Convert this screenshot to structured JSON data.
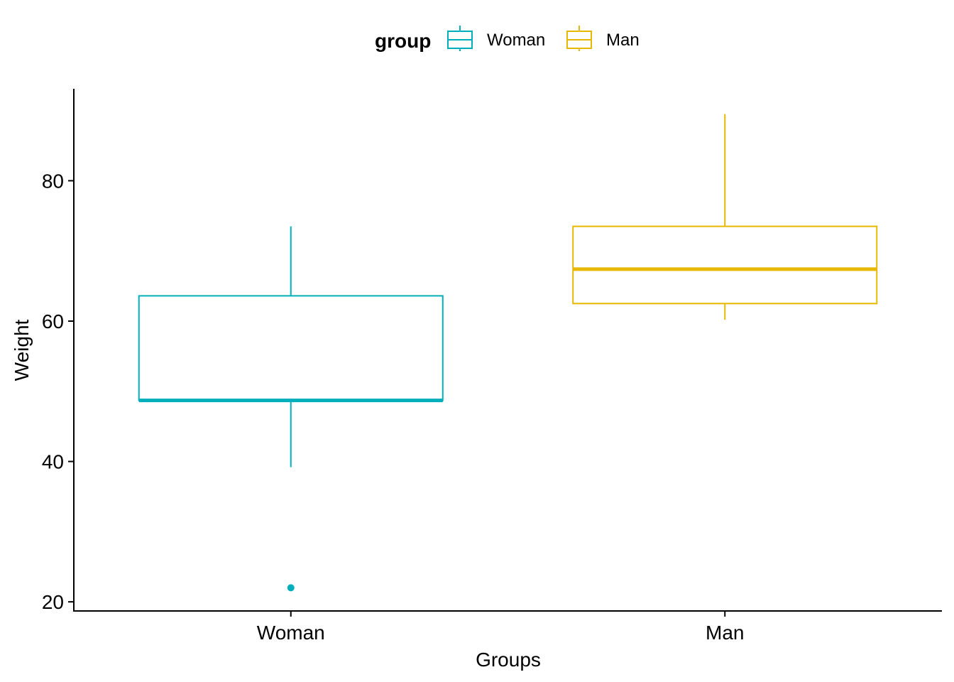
{
  "chart_data": {
    "type": "boxplot",
    "xlabel": "Groups",
    "ylabel": "Weight",
    "ylim": [
      18.7,
      93.1
    ],
    "yticks": [
      20,
      40,
      60,
      80
    ],
    "categories": [
      "Woman",
      "Man"
    ],
    "legend": {
      "title": "group",
      "position": "top",
      "entries": [
        "Woman",
        "Man"
      ]
    },
    "grid": false,
    "series": [
      {
        "name": "Woman",
        "color": "#00AFBB",
        "whisker_low": 39.2,
        "q1": 48.7,
        "median": 48.7,
        "q3": 63.6,
        "whisker_high": 73.5,
        "outliers": [
          22.0
        ]
      },
      {
        "name": "Man",
        "color": "#E7B800",
        "whisker_low": 60.2,
        "q1": 62.5,
        "median": 67.4,
        "q3": 73.5,
        "whisker_high": 89.5,
        "outliers": []
      }
    ]
  }
}
